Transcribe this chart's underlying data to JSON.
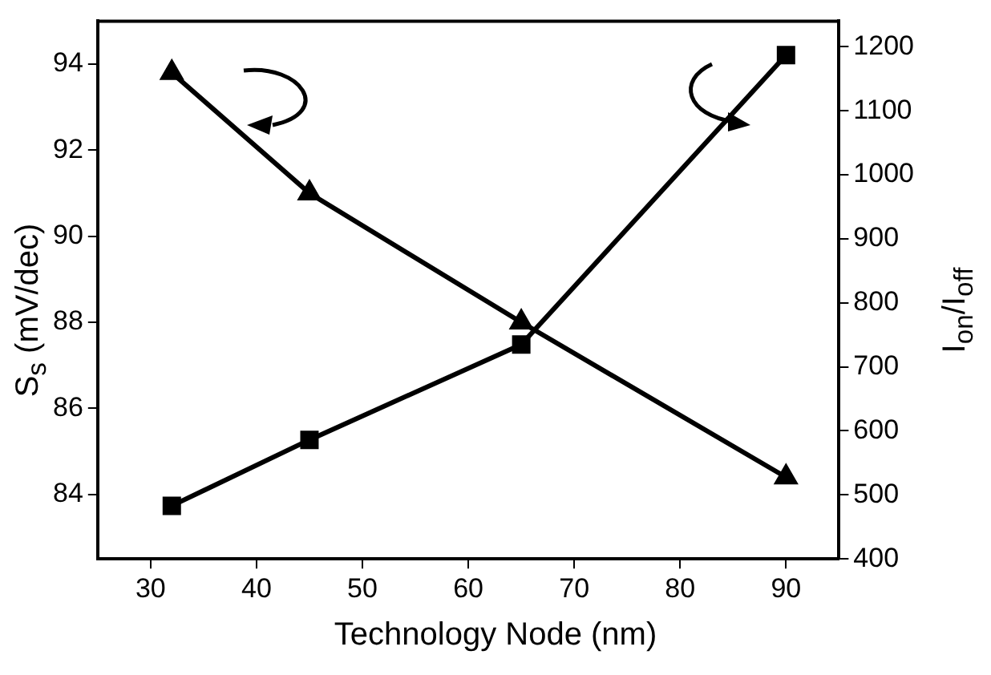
{
  "chart_data": {
    "type": "line",
    "xlabel": "Technology Node (nm)",
    "ylabel": "S$_{s}$ (mV/dec)",
    "y2label": "I$_{on}$/I$_{off}$",
    "x": [
      32,
      45,
      65,
      90
    ],
    "series": [
      {
        "color": "#000000",
        "marker": "triangle",
        "values": [
          93.8,
          91.0,
          88.0,
          84.4
        ]
      },
      {
        "color": "#000000",
        "marker": "square",
        "axis": "y2",
        "values": [
          483,
          586,
          735,
          1187
        ]
      }
    ],
    "xlim": [
      25,
      95
    ],
    "xticks": [
      30,
      40,
      50,
      60,
      70,
      80,
      90
    ],
    "ylim": [
      82.5,
      95
    ],
    "yticks": [
      84,
      86,
      88,
      90,
      92,
      94
    ],
    "y2lim": [
      400,
      1240
    ],
    "y2ticks": [
      400,
      500,
      600,
      700,
      800,
      900,
      1000,
      1100,
      1200
    ],
    "grid": false,
    "legend": false,
    "line_style": "solid"
  }
}
